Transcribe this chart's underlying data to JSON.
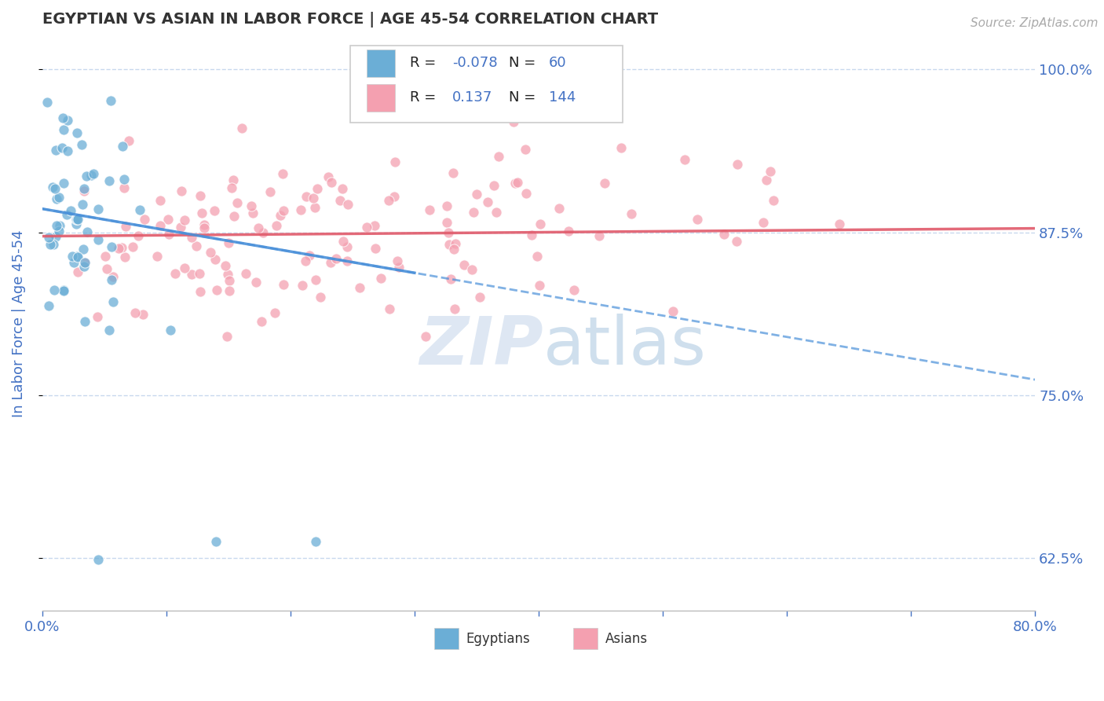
{
  "title": "EGYPTIAN VS ASIAN IN LABOR FORCE | AGE 45-54 CORRELATION CHART",
  "source": "Source: ZipAtlas.com",
  "ylabel": "In Labor Force | Age 45-54",
  "xlim": [
    0.0,
    0.8
  ],
  "ylim": [
    0.585,
    1.025
  ],
  "yticks": [
    0.625,
    0.75,
    0.875,
    1.0
  ],
  "ytick_labels": [
    "62.5%",
    "75.0%",
    "87.5%",
    "100.0%"
  ],
  "xticks": [
    0.0,
    0.1,
    0.2,
    0.3,
    0.4,
    0.5,
    0.6,
    0.7,
    0.8
  ],
  "R_egyptian": -0.078,
  "N_egyptian": 60,
  "R_asian": 0.137,
  "N_asian": 144,
  "dot_color_egyptian": "#6baed6",
  "dot_color_asian": "#f4a0b0",
  "line_color_egyptian": "#4a90d9",
  "line_color_asian": "#e05a6a",
  "axis_color": "#4472c4",
  "grid_color": "#c8d8ee",
  "background_color": "#ffffff",
  "seed": 42,
  "eg_trend_x0": 0.0,
  "eg_trend_y0": 0.893,
  "eg_trend_x1": 0.8,
  "eg_trend_y1": 0.762,
  "as_trend_x0": 0.0,
  "as_trend_y0": 0.872,
  "as_trend_x1": 0.8,
  "as_trend_y1": 0.878
}
